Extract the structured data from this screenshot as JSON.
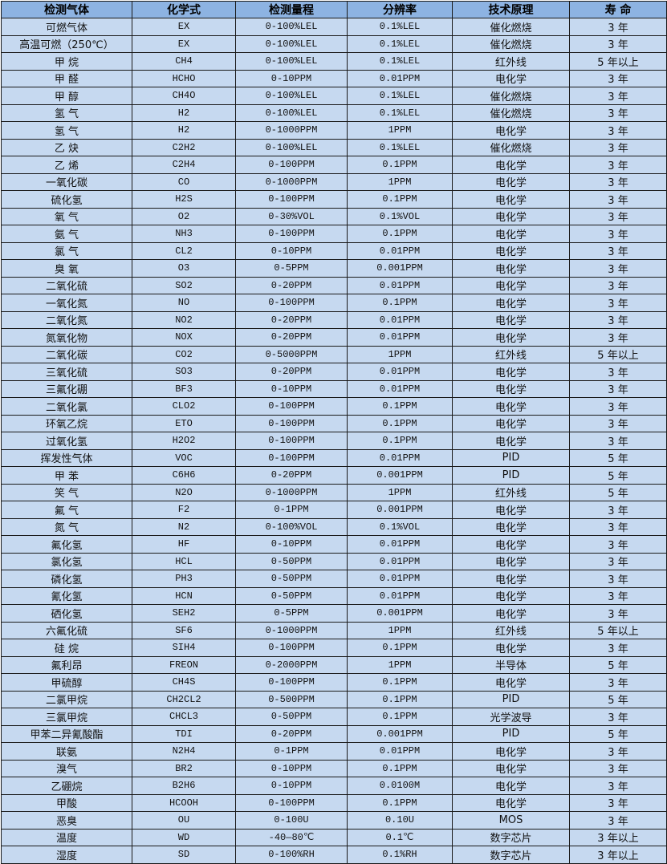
{
  "table": {
    "headers": [
      "检测气体",
      "化学式",
      "检测量程",
      "分辨率",
      "技术原理",
      "寿 命"
    ],
    "rows": [
      [
        "可燃气体",
        "EX",
        "0-100%LEL",
        "0.1%LEL",
        "催化燃烧",
        "3 年"
      ],
      [
        "高温可燃（250℃）",
        "EX",
        "0-100%LEL",
        "0.1%LEL",
        "催化燃烧",
        "3 年"
      ],
      [
        "甲 烷",
        "CH4",
        "0-100%LEL",
        "0.1%LEL",
        "红外线",
        "5 年以上"
      ],
      [
        "甲 醛",
        "HCHO",
        "0-10PPM",
        "0.01PPM",
        "电化学",
        "3 年"
      ],
      [
        "甲 醇",
        "CH4O",
        "0-100%LEL",
        "0.1%LEL",
        "催化燃烧",
        "3 年"
      ],
      [
        "氢 气",
        "H2",
        "0-100%LEL",
        "0.1%LEL",
        "催化燃烧",
        "3 年"
      ],
      [
        "氢 气",
        "H2",
        "0-1000PPM",
        "1PPM",
        "电化学",
        "3 年"
      ],
      [
        "乙 炔",
        "C2H2",
        "0-100%LEL",
        "0.1%LEL",
        "催化燃烧",
        "3 年"
      ],
      [
        "乙 烯",
        "C2H4",
        "0-100PPM",
        "0.1PPM",
        "电化学",
        "3 年"
      ],
      [
        "一氧化碳",
        "CO",
        "0-1000PPM",
        "1PPM",
        "电化学",
        "3 年"
      ],
      [
        "硫化氢",
        "H2S",
        "0-100PPM",
        "0.1PPM",
        "电化学",
        "3 年"
      ],
      [
        "氧 气",
        "O2",
        "0-30%VOL",
        "0.1%VOL",
        "电化学",
        "3 年"
      ],
      [
        "氨 气",
        "NH3",
        "0-100PPM",
        "0.1PPM",
        "电化学",
        "3 年"
      ],
      [
        "氯 气",
        "CL2",
        "0-10PPM",
        "0.01PPM",
        "电化学",
        "3 年"
      ],
      [
        "臭 氧",
        "O3",
        "0-5PPM",
        "0.001PPM",
        "电化学",
        "3 年"
      ],
      [
        "二氧化硫",
        "SO2",
        "0-20PPM",
        "0.01PPM",
        "电化学",
        "3 年"
      ],
      [
        "一氧化氮",
        "NO",
        "0-100PPM",
        "0.1PPM",
        "电化学",
        "3 年"
      ],
      [
        "二氧化氮",
        "NO2",
        "0-20PPM",
        "0.01PPM",
        "电化学",
        "3 年"
      ],
      [
        "氮氧化物",
        "NOX",
        "0-20PPM",
        "0.01PPM",
        "电化学",
        "3 年"
      ],
      [
        "二氧化碳",
        "CO2",
        "0-5000PPM",
        "1PPM",
        "红外线",
        "5 年以上"
      ],
      [
        "三氧化硫",
        "SO3",
        "0-20PPM",
        "0.01PPM",
        "电化学",
        "3 年"
      ],
      [
        "三氟化硼",
        "BF3",
        "0-10PPM",
        "0.01PPM",
        "电化学",
        "3 年"
      ],
      [
        "二氧化氯",
        "CLO2",
        "0-100PPM",
        "0.1PPM",
        "电化学",
        "3 年"
      ],
      [
        "环氧乙烷",
        "ETO",
        "0-100PPM",
        "0.1PPM",
        "电化学",
        "3 年"
      ],
      [
        "过氧化氢",
        "H2O2",
        "0-100PPM",
        "0.1PPM",
        "电化学",
        "3 年"
      ],
      [
        "挥发性气体",
        "VOC",
        "0-100PPM",
        "0.01PPM",
        "PID",
        "5 年"
      ],
      [
        "甲 苯",
        "C6H6",
        "0-20PPM",
        "0.001PPM",
        "PID",
        "5 年"
      ],
      [
        "笑 气",
        "N2O",
        "0-1000PPM",
        "1PPM",
        "红外线",
        "5 年"
      ],
      [
        "氟 气",
        "F2",
        "0-1PPM",
        "0.001PPM",
        "电化学",
        "3 年"
      ],
      [
        "氮 气",
        "N2",
        "0-100%VOL",
        "0.1%VOL",
        "电化学",
        "3 年"
      ],
      [
        "氟化氢",
        "HF",
        "0-10PPM",
        "0.01PPM",
        "电化学",
        "3 年"
      ],
      [
        "氯化氢",
        "HCL",
        "0-50PPM",
        "0.01PPM",
        "电化学",
        "3 年"
      ],
      [
        "磷化氢",
        "PH3",
        "0-50PPM",
        "0.01PPM",
        "电化学",
        "3 年"
      ],
      [
        "氰化氢",
        "HCN",
        "0-50PPM",
        "0.01PPM",
        "电化学",
        "3 年"
      ],
      [
        "硒化氢",
        "SEH2",
        "0-5PPM",
        "0.001PPM",
        "电化学",
        "3 年"
      ],
      [
        "六氟化硫",
        "SF6",
        "0-1000PPM",
        "1PPM",
        "红外线",
        "5 年以上"
      ],
      [
        "硅 烷",
        "SIH4",
        "0-100PPM",
        "0.1PPM",
        "电化学",
        "3 年"
      ],
      [
        "氟利昂",
        "FREON",
        "0-2000PPM",
        "1PPM",
        "半导体",
        "5 年"
      ],
      [
        "甲硫醇",
        "CH4S",
        "0-100PPM",
        "0.1PPM",
        "电化学",
        "3 年"
      ],
      [
        "二氯甲烷",
        "CH2CL2",
        "0-500PPM",
        "0.1PPM",
        "PID",
        "5 年"
      ],
      [
        "三氯甲烷",
        "CHCL3",
        "0-50PPM",
        "0.1PPM",
        "光学波导",
        "3 年"
      ],
      [
        "甲苯二异氰酸酯",
        "TDI",
        "0-20PPM",
        "0.001PPM",
        "PID",
        "5 年"
      ],
      [
        "联氨",
        "N2H4",
        "0-1PPM",
        "0.01PPM",
        "电化学",
        "3 年"
      ],
      [
        "溴气",
        "BR2",
        "0-10PPM",
        "0.1PPM",
        "电化学",
        "3 年"
      ],
      [
        "乙硼烷",
        "B2H6",
        "0-10PPM",
        "0.0100M",
        "电化学",
        "3 年"
      ],
      [
        "甲酸",
        "HCOOH",
        "0-100PPM",
        "0.1PPM",
        "电化学",
        "3 年"
      ],
      [
        "恶臭",
        "OU",
        "0-100U",
        "0.10U",
        "MOS",
        "3 年"
      ],
      [
        "温度",
        "WD",
        "-40—80℃",
        "0.1℃",
        "数字芯片",
        "3 年以上"
      ],
      [
        "湿度",
        "SD",
        "0-100%RH",
        "0.1%RH",
        "数字芯片",
        "3 年以上"
      ]
    ]
  },
  "colors": {
    "header_bg": "#8db3e2",
    "row_bg": "#c6d9f0",
    "border": "#1a1a1a"
  }
}
